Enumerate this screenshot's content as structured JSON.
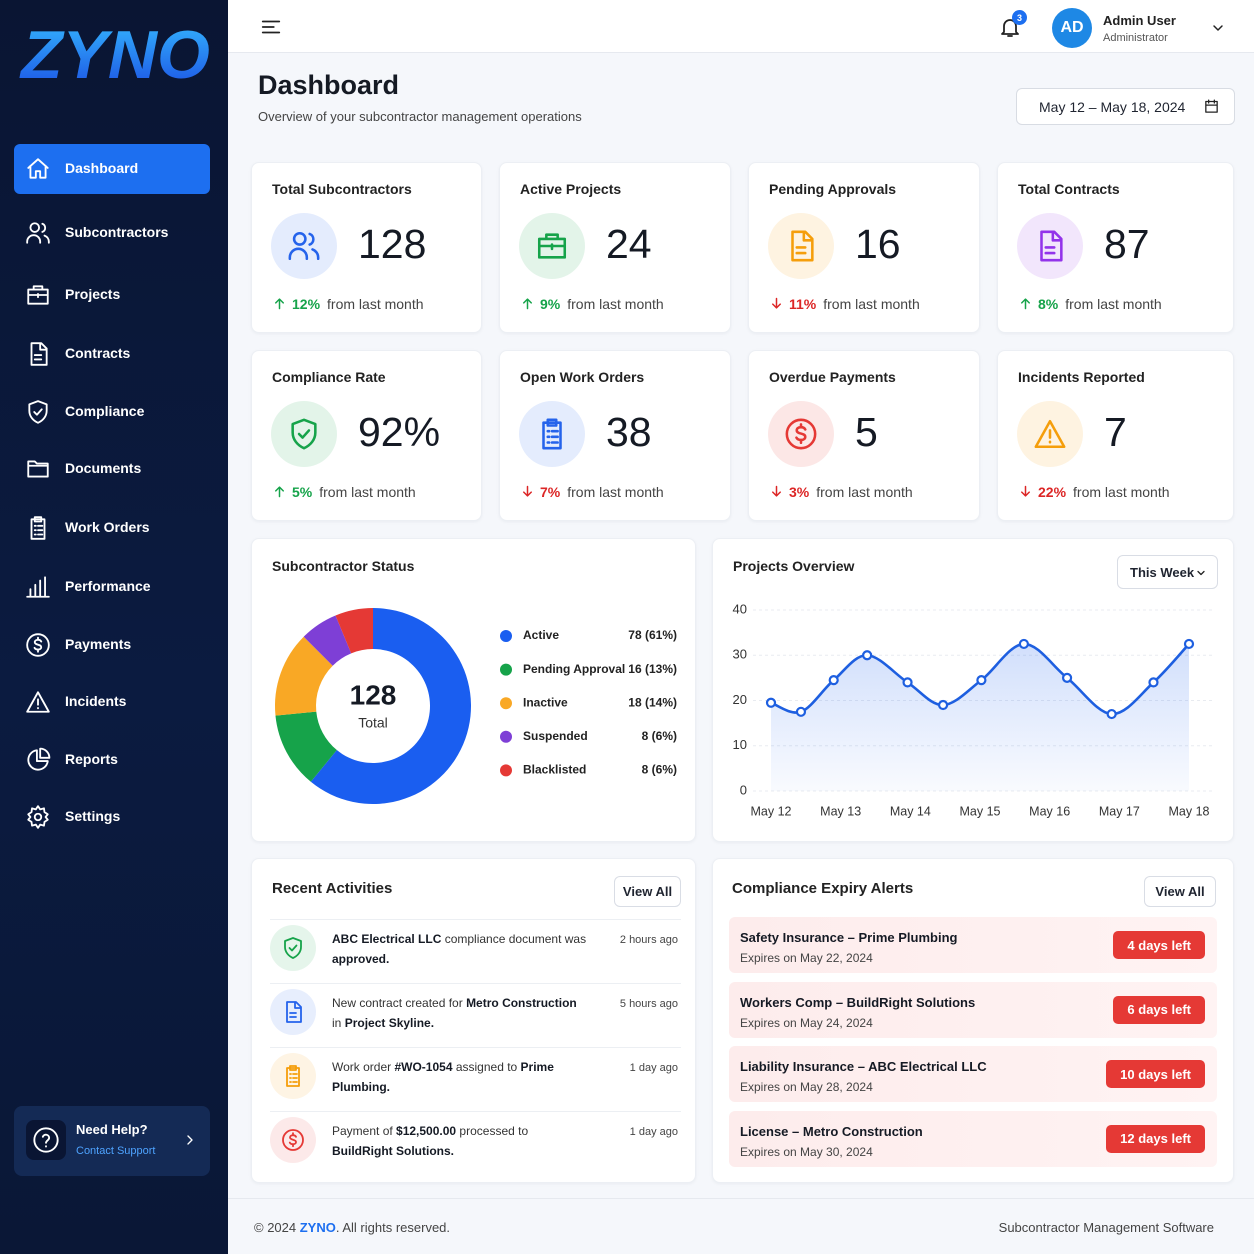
{
  "brand": "ZYNO",
  "nav": {
    "active": 0,
    "items": [
      "Dashboard",
      "Subcontractors",
      "Projects",
      "Contracts",
      "Compliance",
      "Documents",
      "Work Orders",
      "Performance",
      "Payments",
      "Incidents",
      "Reports",
      "Settings"
    ]
  },
  "help": {
    "title": "Need Help?",
    "link": "Contact Support"
  },
  "header": {
    "notifications": 3,
    "user": {
      "initials": "AD",
      "name": "Admin User",
      "role": "Administrator"
    }
  },
  "page": {
    "title": "Dashboard",
    "subtitle": "Overview of your subcontractor management operations",
    "date_range": "May 12 – May 18, 2024"
  },
  "change_suffix": "from last month",
  "stats": [
    {
      "label": "Total Subcontractors",
      "value": 128,
      "change": "12%",
      "trend": "up",
      "color": "#2563eb"
    },
    {
      "label": "Active Projects",
      "value": 24,
      "change": "9%",
      "trend": "up",
      "color": "#16a34a"
    },
    {
      "label": "Pending Approvals",
      "value": 16,
      "change": "11%",
      "trend": "down",
      "color": "#f59e0b"
    },
    {
      "label": "Total Contracts",
      "value": 87,
      "change": "8%",
      "trend": "up",
      "color": "#9333ea"
    },
    {
      "label": "Compliance Rate",
      "value": "92%",
      "change": "5%",
      "trend": "up",
      "color": "#16a34a"
    },
    {
      "label": "Open Work Orders",
      "value": 38,
      "change": "7%",
      "trend": "down",
      "color": "#2563eb"
    },
    {
      "label": "Overdue Payments",
      "value": 5,
      "change": "3%",
      "trend": "down",
      "color": "#e53935"
    },
    {
      "label": "Incidents Reported",
      "value": 7,
      "change": "22%",
      "trend": "down",
      "color": "#f59e0b"
    }
  ],
  "chart_data": [
    {
      "type": "pie",
      "title": "Subcontractor Status",
      "total_value": 128,
      "total_label": "Total",
      "categories": [
        "Active",
        "Pending Approval",
        "Inactive",
        "Suspended",
        "Blacklisted"
      ],
      "values": [
        78,
        16,
        18,
        8,
        8
      ],
      "value_labels": [
        "78 (61%)",
        "16 (13%)",
        "18 (14%)",
        "8 (6%)",
        "8 (6%)"
      ],
      "colors": [
        "#1a5ef0",
        "#16a34a",
        "#f9a825",
        "#7e3fd6",
        "#e53935"
      ]
    },
    {
      "type": "line",
      "title": "Projects Overview",
      "period": "This Week",
      "x": [
        0,
        0.43,
        0.9,
        1.38,
        1.96,
        2.47,
        3.02,
        3.63,
        4.25,
        4.89,
        5.49,
        6
      ],
      "values": [
        19.5,
        17.5,
        24.5,
        30,
        24,
        19,
        24.5,
        32.5,
        25,
        17,
        24,
        32.5
      ],
      "color": "#1e5fe0",
      "xlim": [
        0,
        6
      ],
      "xticks": [
        {
          "value": 0,
          "label": "May 12"
        },
        {
          "value": 1,
          "label": "May 13"
        },
        {
          "value": 2,
          "label": "May 14"
        },
        {
          "value": 3,
          "label": "May 15"
        },
        {
          "value": 4,
          "label": "May 16"
        },
        {
          "value": 5,
          "label": "May 17"
        },
        {
          "value": 6,
          "label": "May 18"
        }
      ],
      "ylim": [
        0,
        40
      ],
      "yticks": [
        0,
        10,
        20,
        30,
        40
      ],
      "grid": true
    }
  ],
  "activities": {
    "title": "Recent Activities",
    "button": "View All",
    "items": [
      {
        "color": "#16a34a",
        "time": "2 hours ago",
        "parts": [
          {
            "text": "ABC Electrical LLC",
            "bold": true
          },
          {
            "text": " compliance document was ",
            "bold": false
          },
          {
            "text": "approved.",
            "bold": true
          }
        ]
      },
      {
        "color": "#2563eb",
        "time": "5 hours ago",
        "parts": [
          {
            "text": "New contract created for ",
            "bold": false
          },
          {
            "text": "Metro Construction",
            "bold": true
          },
          {
            "text": " in ",
            "bold": false
          },
          {
            "text": "Project Skyline.",
            "bold": true
          }
        ]
      },
      {
        "color": "#f59e0b",
        "time": "1 day ago",
        "parts": [
          {
            "text": "Work order ",
            "bold": false
          },
          {
            "text": "#WO-1054",
            "bold": true
          },
          {
            "text": " assigned to ",
            "bold": false
          },
          {
            "text": "Prime Plumbing.",
            "bold": true
          }
        ]
      },
      {
        "color": "#e53935",
        "time": "1 day ago",
        "parts": [
          {
            "text": "Payment of ",
            "bold": false
          },
          {
            "text": "$12,500.00",
            "bold": true
          },
          {
            "text": " processed to ",
            "bold": false
          },
          {
            "text": "BuildRight Solutions.",
            "bold": true
          }
        ]
      }
    ]
  },
  "alerts": {
    "title": "Compliance Expiry Alerts",
    "button": "View All",
    "items": [
      {
        "title": "Safety Insurance – Prime Plumbing",
        "expires": "Expires on May 22, 2024",
        "badge": "4 days left"
      },
      {
        "title": "Workers Comp – BuildRight Solutions",
        "expires": "Expires on May 24, 2024",
        "badge": "6 days left"
      },
      {
        "title": "Liability Insurance – ABC Electrical LLC",
        "expires": "Expires on May 28, 2024",
        "badge": "10 days left"
      },
      {
        "title": "License – Metro Construction",
        "expires": "Expires on May 30, 2024",
        "badge": "12 days left"
      }
    ]
  },
  "footer": {
    "prefix": "© 2024 ",
    "brand": "ZYNO",
    "suffix": ". All rights reserved.",
    "right": "Subcontractor Management Software"
  }
}
